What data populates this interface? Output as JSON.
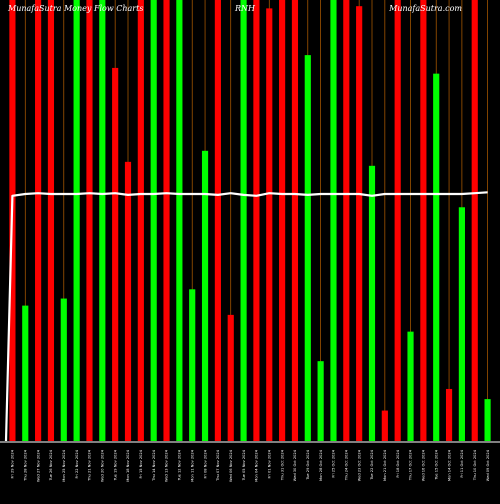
{
  "chart_data": {
    "type": "bar",
    "title": "MunafaSutra Money Flow Charts",
    "ticker": "RNH",
    "watermark": "MunafaSutra.com",
    "grid": true,
    "ylim": [
      0,
      100
    ],
    "categories": [
      "Fri 29 Nov 2024",
      "Thu 28 Nov 2024",
      "Wed 27 Nov 2024",
      "Tue 26 Nov 2024",
      "Mon 25 Nov 2024",
      "Fri 22 Nov 2024",
      "Thu 21 Nov 2024",
      "Wed 20 Nov 2024",
      "Tue 19 Nov 2024",
      "Mon 18 Nov 2024",
      "Fri 15 Nov 2024",
      "Thu 14 Nov 2024",
      "Wed 13 Nov 2024",
      "Tue 12 Nov 2024",
      "Mon 11 Nov 2024",
      "Fri 08 Nov 2024",
      "Thu 07 Nov 2024",
      "Wed 06 Nov 2024",
      "Tue 05 Nov 2024",
      "Mon 04 Nov 2024",
      "Fri 01 Nov 2024",
      "Thu 31 Oct 2024",
      "Wed 30 Oct 2024",
      "Tue 29 Oct 2024",
      "Mon 28 Oct 2024",
      "Fri 25 Oct 2024",
      "Thu 24 Oct 2024",
      "Wed 23 Oct 2024",
      "Tue 22 Oct 2024",
      "Mon 21 Oct 2024",
      "Fri 18 Oct 2024",
      "Thu 17 Oct 2024",
      "Wed 16 Oct 2024",
      "Tue 15 Oct 2024",
      "Mon 14 Oct 2024",
      "Fri 11 Oct 2024",
      "Thu 10 Oct 2024",
      "Wed 09 Oct 2024"
    ],
    "values": [
      100,
      30.7,
      100,
      100,
      32.3,
      100,
      100,
      100,
      84.6,
      63.3,
      100,
      100,
      100,
      100,
      34.4,
      65.8,
      100,
      28.6,
      100,
      100,
      98.1,
      100,
      100,
      87.5,
      18.1,
      100,
      100,
      98.6,
      62.4,
      6.9,
      100,
      24.8,
      100,
      83.3,
      11.8,
      53.0,
      100,
      9.5
    ],
    "colors": [
      "red",
      "green",
      "red",
      "red",
      "green",
      "green",
      "red",
      "green",
      "red",
      "red",
      "red",
      "green",
      "red",
      "green",
      "green",
      "green",
      "red",
      "red",
      "green",
      "red",
      "red",
      "red",
      "red",
      "green",
      "green",
      "green",
      "red",
      "red",
      "green",
      "red",
      "red",
      "green",
      "red",
      "green",
      "red",
      "green",
      "red",
      "green"
    ],
    "average_line": [
      55.6,
      56.0,
      56.2,
      56.0,
      56.0,
      56.0,
      56.2,
      56.0,
      56.2,
      55.8,
      56.0,
      56.0,
      56.2,
      56.0,
      56.0,
      56.0,
      55.8,
      56.2,
      55.8,
      55.6,
      56.2,
      56.0,
      56.0,
      55.8,
      56.0,
      56.0,
      56.0,
      56.0,
      55.6,
      56.0,
      56.0,
      56.0,
      56.0,
      56.0,
      56.0,
      56.0,
      56.2,
      56.4
    ],
    "start_value": 0,
    "color_map": {
      "red": "#ff0000",
      "green": "#00ff00",
      "line": "#ffffff",
      "grid": "#b86000",
      "axis": "#ffffff"
    }
  }
}
